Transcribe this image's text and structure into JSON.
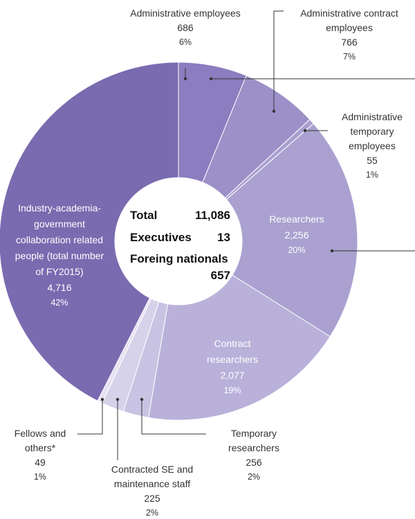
{
  "chart_data": {
    "type": "pie",
    "variant": "donut",
    "total_label": "Total",
    "total_value": "11,086",
    "executives_label": "Executives",
    "executives_value": "13",
    "foreign_label": "Foreing nationals",
    "foreign_value": "657",
    "slices": [
      {
        "lines": [
          "Administrative employees"
        ],
        "value": 686,
        "value_text": "686",
        "pct": "6%",
        "color": "#8b7dbf"
      },
      {
        "lines": [
          "Administrative contract",
          "employees"
        ],
        "value": 766,
        "value_text": "766",
        "pct": "7%",
        "color": "#9c90c8"
      },
      {
        "lines": [
          "Administrative",
          "temporary",
          "employees"
        ],
        "value": 55,
        "value_text": "55",
        "pct": "1%",
        "color": "#a99fd0"
      },
      {
        "lines": [
          "Researchers"
        ],
        "value": 2256,
        "value_text": "2,256",
        "pct": "20%",
        "color": "#aaa1d0"
      },
      {
        "lines": [
          "Contract",
          "researchers"
        ],
        "value": 2077,
        "value_text": "2,077",
        "pct": "19%",
        "color": "#b9b1da"
      },
      {
        "lines": [
          "Temporary",
          "researchers"
        ],
        "value": 256,
        "value_text": "256",
        "pct": "2%",
        "color": "#c9c3e3"
      },
      {
        "lines": [
          "Contracted SE and",
          "maintenance staff"
        ],
        "value": 225,
        "value_text": "225",
        "pct": "2%",
        "color": "#d6d2ea"
      },
      {
        "lines": [
          "Fellows and",
          "others*"
        ],
        "value": 49,
        "value_text": "49",
        "pct": "1%",
        "color": "#e6e3f2"
      },
      {
        "lines": [
          "Industry-academia-",
          "government",
          "collaboration related",
          "people (total number",
          "of FY2015)"
        ],
        "value": 4716,
        "value_text": "4,716",
        "pct": "42%",
        "color": "#7a6bb0"
      }
    ]
  }
}
